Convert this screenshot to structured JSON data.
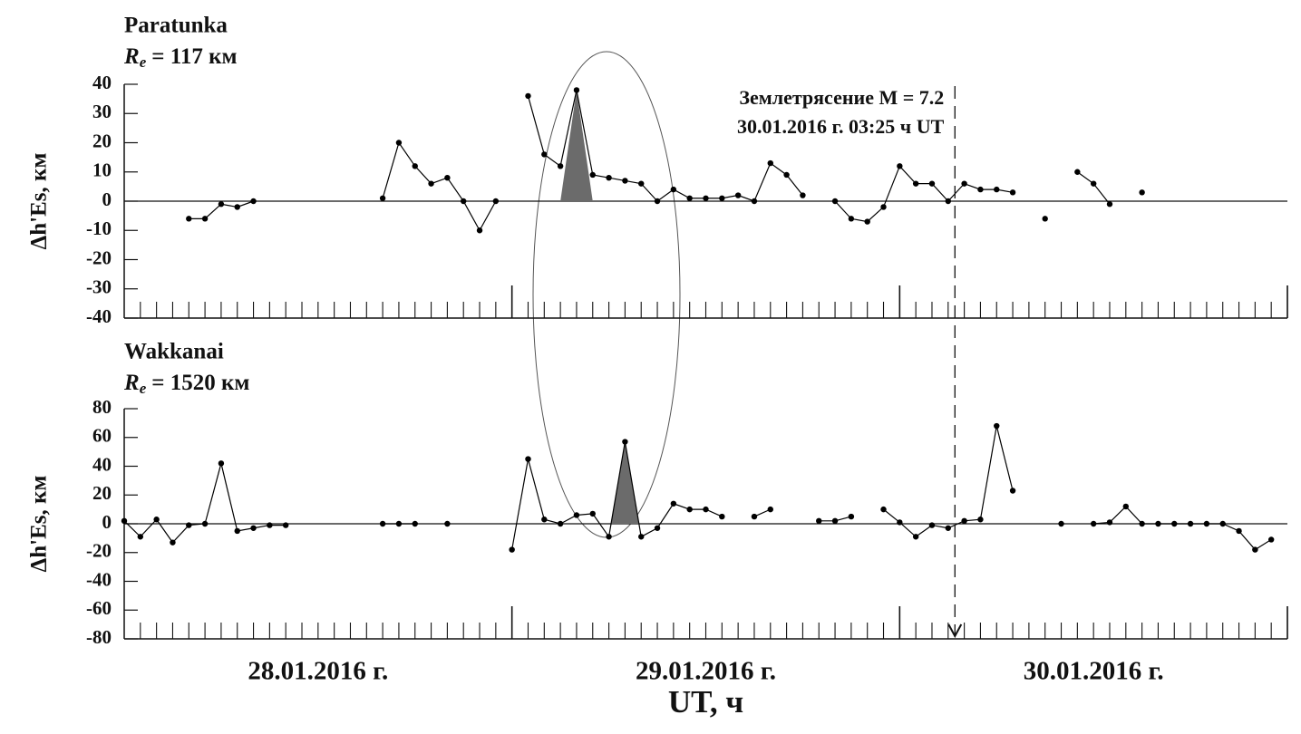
{
  "chart_data": [
    {
      "type": "line",
      "title": "Paratunka",
      "subtitle": {
        "symbol": "R",
        "subscript": "e",
        "text": "= 117 км"
      },
      "ylabel": "Δh'Es, км",
      "x": [
        0,
        1,
        2,
        3,
        4,
        5,
        6,
        7,
        8,
        9,
        10,
        11,
        12,
        13,
        14,
        15,
        16,
        17,
        18,
        19,
        20,
        21,
        22,
        23,
        24,
        25,
        26,
        27,
        28,
        29,
        30,
        31,
        32,
        33,
        34,
        35,
        36,
        37,
        38,
        39,
        40,
        41,
        42,
        43,
        44,
        45,
        46,
        47,
        48,
        49,
        50,
        51,
        52,
        53,
        54,
        55,
        56,
        57,
        58,
        59,
        60,
        61,
        62,
        63,
        64,
        65,
        66,
        67,
        68,
        69,
        70,
        71
      ],
      "values": [
        null,
        null,
        null,
        null,
        -6,
        -6,
        -1,
        -2,
        0,
        null,
        null,
        null,
        null,
        null,
        null,
        null,
        1,
        20,
        12,
        6,
        8,
        0,
        -10,
        0,
        null,
        36,
        16,
        12,
        38,
        9,
        8,
        7,
        6,
        0,
        4,
        1,
        1,
        1,
        2,
        0,
        13,
        9,
        2,
        null,
        0,
        -6,
        -7,
        -2,
        12,
        6,
        6,
        0,
        6,
        4,
        4,
        3,
        null,
        -6,
        null,
        10,
        6,
        -1,
        null,
        3,
        null,
        null,
        null,
        null,
        null,
        null,
        null,
        null
      ],
      "color": "#000000",
      "highlight_x": [
        27,
        29
      ],
      "highlight_color": "#6b6b6b",
      "ylim": [
        -40,
        40
      ],
      "yticks": [
        -40,
        -30,
        -20,
        -10,
        0,
        10,
        20,
        30,
        40
      ]
    },
    {
      "type": "line",
      "title": "Wakkanai",
      "subtitle": {
        "symbol": "R",
        "subscript": "e",
        "text": "= 1520 км"
      },
      "ylabel": "Δh'Es, км",
      "x": [
        0,
        1,
        2,
        3,
        4,
        5,
        6,
        7,
        8,
        9,
        10,
        11,
        12,
        13,
        14,
        15,
        16,
        17,
        18,
        19,
        20,
        21,
        22,
        23,
        24,
        25,
        26,
        27,
        28,
        29,
        30,
        31,
        32,
        33,
        34,
        35,
        36,
        37,
        38,
        39,
        40,
        41,
        42,
        43,
        44,
        45,
        46,
        47,
        48,
        49,
        50,
        51,
        52,
        53,
        54,
        55,
        56,
        57,
        58,
        59,
        60,
        61,
        62,
        63,
        64,
        65,
        66,
        67,
        68,
        69,
        70,
        71
      ],
      "values": [
        2,
        -9,
        3,
        -13,
        -1,
        0,
        42,
        -5,
        -3,
        -1,
        -1,
        null,
        null,
        null,
        null,
        null,
        0,
        0,
        0,
        null,
        0,
        null,
        null,
        null,
        -18,
        45,
        3,
        0,
        6,
        7,
        -9,
        57,
        -9,
        -3,
        14,
        10,
        10,
        5,
        null,
        5,
        10,
        null,
        null,
        2,
        2,
        5,
        null,
        10,
        1,
        -9,
        -1,
        -3,
        2,
        3,
        68,
        23,
        null,
        null,
        0,
        null,
        0,
        1,
        12,
        0,
        0,
        0,
        0,
        0,
        0,
        -5,
        -18,
        -11
      ],
      "color": "#000000",
      "highlight_x": [
        30.15,
        31.85
      ],
      "highlight_color": "#6b6b6b",
      "ylim": [
        -80,
        80
      ],
      "yticks": [
        -80,
        -60,
        -40,
        -20,
        0,
        20,
        40,
        60,
        80
      ]
    }
  ],
  "x_axis": {
    "label": "UT, ч",
    "xlim": [
      0,
      72
    ],
    "minor_step": 1,
    "major_step": 24,
    "day_labels": [
      {
        "value": 12,
        "label": "28.01.2016 г."
      },
      {
        "value": 36,
        "label": "29.01.2016 г."
      },
      {
        "value": 60,
        "label": "30.01.2016 г."
      }
    ]
  },
  "annotation": {
    "lines": [
      "Землетрясение M = 7.2",
      "30.01.2016 г. 03:25 ч UT"
    ],
    "x": 51.42
  }
}
